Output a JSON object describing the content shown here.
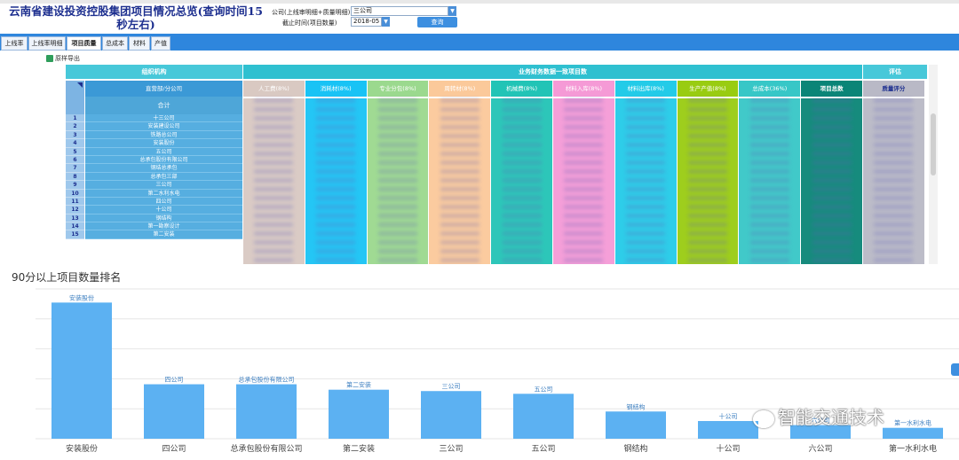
{
  "window": {
    "title": "云南省建设投资控股集团项目情况总览(查询时间15秒左右)"
  },
  "filters": {
    "company_label": "公司(上线审明细+质量明细)",
    "company_value": "三公司",
    "date_label": "截止时间(项目数量)",
    "date_value": "2018-05",
    "query_button": "查询"
  },
  "tabs": [
    {
      "label": "上线率"
    },
    {
      "label": "上线率明细"
    },
    {
      "label": "项目质量"
    },
    {
      "label": "总成本"
    },
    {
      "label": "材料"
    },
    {
      "label": "产值"
    }
  ],
  "toolbar": {
    "export_label": "原样导出"
  },
  "table": {
    "group_headers": {
      "org": "组织机构",
      "business": "业务财务数据一致项目数",
      "eval": "评估"
    },
    "org_subheader": "直营部/分公司",
    "total_label": "合计",
    "columns": [
      {
        "label": "人工费(8%)",
        "color": "#d9c9c2"
      },
      {
        "label": "消耗材(8%)",
        "color": "#19c3f5"
      },
      {
        "label": "专业分包(8%)",
        "color": "#9bd98e"
      },
      {
        "label": "周转材(8%)",
        "color": "#fbc99a"
      },
      {
        "label": "机械费(8%)",
        "color": "#22c4b6"
      },
      {
        "label": "材料入库(8%)",
        "color": "#f59ad6"
      },
      {
        "label": "材料出库(8%)",
        "color": "#23cbe8"
      },
      {
        "label": "生产产值(8%)",
        "color": "#99cc11"
      },
      {
        "label": "总成本(36%)",
        "color": "#37c7c7"
      },
      {
        "label": "项目总数",
        "color": "#0a8577"
      },
      {
        "label": "质量评分",
        "color": "#b9b9c6"
      }
    ],
    "rows": [
      {
        "num": "1",
        "name": "十三公司"
      },
      {
        "num": "2",
        "name": "安装建设公司"
      },
      {
        "num": "3",
        "name": "铁路总公司"
      },
      {
        "num": "4",
        "name": "安装股份"
      },
      {
        "num": "5",
        "name": "五公司"
      },
      {
        "num": "6",
        "name": "总承包股份有限公司"
      },
      {
        "num": "7",
        "name": "钢结总承包"
      },
      {
        "num": "8",
        "name": "总承包三部"
      },
      {
        "num": "9",
        "name": "三公司"
      },
      {
        "num": "10",
        "name": "第二水利水电"
      },
      {
        "num": "11",
        "name": "四公司"
      },
      {
        "num": "12",
        "name": "十公司"
      },
      {
        "num": "13",
        "name": "钢结构"
      },
      {
        "num": "14",
        "name": "第一勘察设计"
      },
      {
        "num": "15",
        "name": "第二安装"
      }
    ]
  },
  "chart_data": {
    "type": "bar",
    "title": "90分以上项目数量排名",
    "categories": [
      "安装股份",
      "四公司",
      "总承包股份有限公司",
      "第二安装",
      "三公司",
      "五公司",
      "钢结构",
      "十公司",
      "六公司",
      "第一水利水电"
    ],
    "values": [
      100,
      40,
      40,
      36,
      35,
      33,
      20,
      13,
      10,
      8
    ],
    "ylim": [
      0,
      110
    ],
    "color": "#5cb1f2",
    "grid": true
  },
  "watermark": {
    "text": "智能交通技术"
  }
}
